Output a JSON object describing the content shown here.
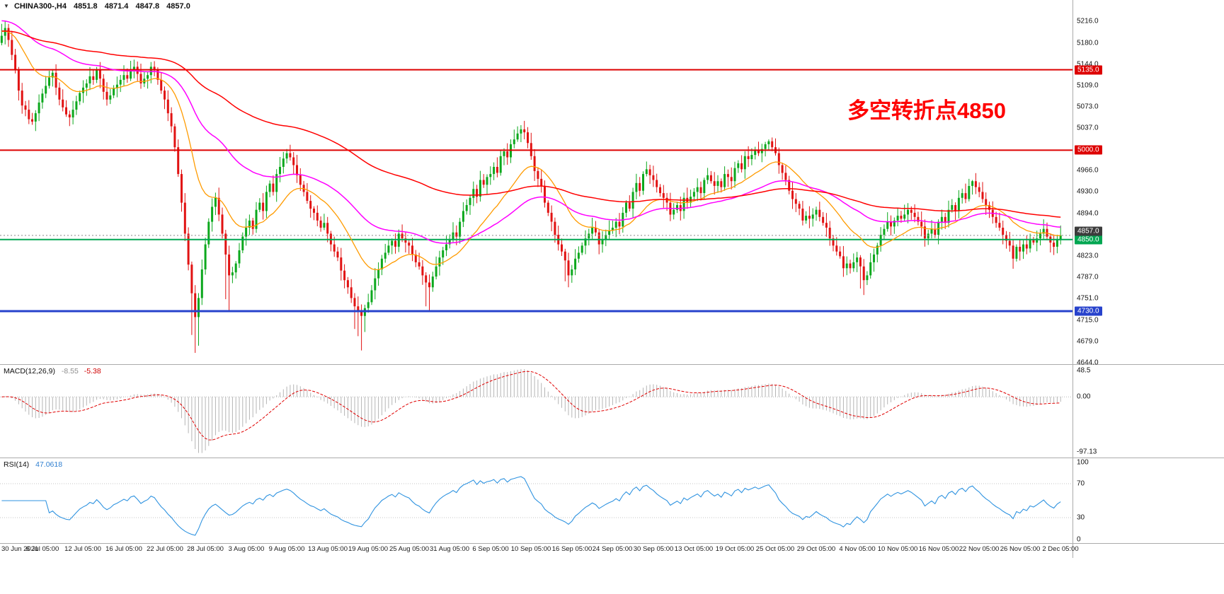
{
  "quote_bar": {
    "marker": "▼",
    "symbol": "CHINA300-,H4",
    "open": "4851.8",
    "high": "4871.4",
    "low": "4847.8",
    "close": "4857.0"
  },
  "annotation": {
    "text": "多空转折点4850",
    "color": "#fe0000"
  },
  "chart_data": {
    "type": "candlestick",
    "title": "CHINA300-,H4",
    "timeframe": "H4",
    "bars_per_label": 12,
    "x_labels": [
      "30 Jun 2021",
      "6 Jul 05:00",
      "12 Jul 05:00",
      "16 Jul 05:00",
      "22 Jul 05:00",
      "28 Jul 05:00",
      "3 Aug 05:00",
      "9 Aug 05:00",
      "13 Aug 05:00",
      "19 Aug 05:00",
      "25 Aug 05:00",
      "31 Aug 05:00",
      "6 Sep 05:00",
      "10 Sep 05:00",
      "16 Sep 05:00",
      "24 Sep 05:00",
      "30 Sep 05:00",
      "13 Oct 05:00",
      "19 Oct 05:00",
      "25 Oct 05:00",
      "29 Oct 05:00",
      "4 Nov 05:00",
      "10 Nov 05:00",
      "16 Nov 05:00",
      "22 Nov 05:00",
      "26 Nov 05:00",
      "2 Dec 05:00"
    ],
    "price_axis": {
      "min": 4641,
      "max": 5252,
      "ticks": [
        5216,
        5180,
        5144,
        5109,
        5073,
        5037,
        4966,
        4930,
        4894,
        4823,
        4787,
        4751,
        4715,
        4679,
        4644
      ]
    },
    "bull_color": "#0ca81d",
    "bear_color": "#e11212",
    "open_first": 5180,
    "closes": [
      5192,
      5205,
      5185,
      5160,
      5135,
      5100,
      5075,
      5068,
      5052,
      5048,
      5062,
      5080,
      5095,
      5108,
      5122,
      5130,
      5105,
      5085,
      5072,
      5060,
      5055,
      5068,
      5082,
      5096,
      5105,
      5112,
      5124,
      5118,
      5135,
      5120,
      5098,
      5085,
      5092,
      5104,
      5110,
      5118,
      5126,
      5120,
      5135,
      5140,
      5128,
      5112,
      5120,
      5126,
      5140,
      5135,
      5118,
      5100,
      5085,
      5062,
      5040,
      5005,
      4960,
      4912,
      4860,
      4808,
      4760,
      4720,
      4752,
      4800,
      4842,
      4880,
      4905,
      4920,
      4892,
      4860,
      4825,
      4790,
      4795,
      4810,
      4832,
      4855,
      4870,
      4882,
      4868,
      4900,
      4912,
      4898,
      4930,
      4944,
      4930,
      4960,
      4972,
      4986,
      4995,
      4988,
      4975,
      4958,
      4942,
      4930,
      4915,
      4902,
      4895,
      4882,
      4870,
      4878,
      4860,
      4842,
      4830,
      4820,
      4798,
      4782,
      4770,
      4752,
      4738,
      4730,
      4722,
      4735,
      4745,
      4765,
      4785,
      4800,
      4818,
      4828,
      4840,
      4848,
      4838,
      4860,
      4852,
      4845,
      4840,
      4825,
      4812,
      4805,
      4790,
      4778,
      4770,
      4788,
      4805,
      4820,
      4832,
      4842,
      4850,
      4862,
      4855,
      4880,
      4898,
      4908,
      4920,
      4935,
      4922,
      4950,
      4942,
      4955,
      4960,
      4972,
      4962,
      4990,
      4998,
      4988,
      5010,
      5018,
      5028,
      5035,
      5030,
      5012,
      4990,
      4965,
      4952,
      4940,
      4912,
      4895,
      4880,
      4858,
      4842,
      4830,
      4815,
      4790,
      4800,
      4818,
      4828,
      4840,
      4852,
      4860,
      4870,
      4862,
      4842,
      4850,
      4858,
      4865,
      4870,
      4880,
      4872,
      4895,
      4912,
      4902,
      4930,
      4945,
      4932,
      4960,
      4968,
      4958,
      4950,
      4938,
      4928,
      4920,
      4912,
      4892,
      4900,
      4908,
      4898,
      4920,
      4912,
      4922,
      4930,
      4938,
      4928,
      4950,
      4958,
      4948,
      4940,
      4948,
      4938,
      4960,
      4955,
      4948,
      4970,
      4978,
      4968,
      4990,
      4985,
      4992,
      5000,
      4995,
      5002,
      5010,
      5015,
      5005,
      4995,
      4975,
      4962,
      4950,
      4932,
      4918,
      4910,
      4902,
      4882,
      4890,
      4885,
      4892,
      4900,
      4888,
      4878,
      4870,
      4852,
      4840,
      4830,
      4822,
      4802,
      4810,
      4802,
      4812,
      4820,
      4805,
      4782,
      4790,
      4812,
      4825,
      4840,
      4858,
      4868,
      4880,
      4872,
      4882,
      4890,
      4885,
      4892,
      4900,
      4895,
      4888,
      4880,
      4872,
      4852,
      4860,
      4868,
      4858,
      4880,
      4888,
      4878,
      4900,
      4908,
      4898,
      4920,
      4928,
      4918,
      4940,
      4948,
      4938,
      4930,
      4918,
      4908,
      4900,
      4888,
      4878,
      4870,
      4858,
      4848,
      4840,
      4818,
      4838,
      4830,
      4842,
      4835,
      4850,
      4845,
      4852,
      4860,
      4868,
      4855,
      4845,
      4838,
      4850,
      4857
    ],
    "high_overrides": {
      "0": 5212,
      "1": 5216,
      "38": 5150,
      "39": 5152,
      "44": 5148,
      "84": 5002,
      "152": 5040,
      "153": 5042,
      "225": 5014,
      "226": 5018,
      "285": 4952,
      "286": 4950
    },
    "low_overrides": {
      "56": 4690,
      "57": 4660,
      "58": 4672,
      "66": 4750,
      "67": 4730,
      "104": 4700,
      "105": 4688,
      "106": 4664,
      "107": 4695,
      "125": 4738,
      "126": 4730,
      "166": 4780,
      "167": 4770,
      "253": 4768,
      "254": 4757,
      "298": 4801
    },
    "key_levels": [
      {
        "label": "5135.0",
        "value": 5135,
        "color": "#dd0000",
        "width": 2
      },
      {
        "label": "5000.0",
        "value": 5000,
        "color": "#dd0000",
        "width": 2
      },
      {
        "label": "4850.0",
        "value": 4850,
        "color": "#00a651",
        "width": 2
      },
      {
        "label": "4730.0",
        "value": 4730,
        "color": "#2742cc",
        "width": 3
      }
    ],
    "current_price": {
      "label": "4857.0",
      "value": 4857,
      "badge_color": "#3c3c3c"
    },
    "moving_averages": [
      {
        "name": "fast-ma",
        "period": 20,
        "seed": 5200,
        "color": "#ff9b00",
        "width": 1.3
      },
      {
        "name": "medium-ma",
        "period": 55,
        "seed": 5218,
        "color": "#ff00ff",
        "width": 1.5
      },
      {
        "name": "slow-ma",
        "period": 130,
        "seed": 5200,
        "color": "#ff0000",
        "width": 1.5
      }
    ],
    "macd": {
      "label": "MACD(12,26,9)",
      "fast": 12,
      "slow": 26,
      "signal_period": 9,
      "value": "-8.55",
      "signal": "-5.38",
      "histogram_color": "#b5b5b5",
      "signal_color": "#e00000",
      "axis": {
        "top": "48.5",
        "zero": "0.00",
        "bottom": "-97.13"
      }
    },
    "rsi": {
      "label": "RSI(14)",
      "period": 14,
      "value": "47.0618",
      "color": "#2f93e0",
      "levels": [
        100,
        70,
        30,
        0
      ]
    }
  }
}
